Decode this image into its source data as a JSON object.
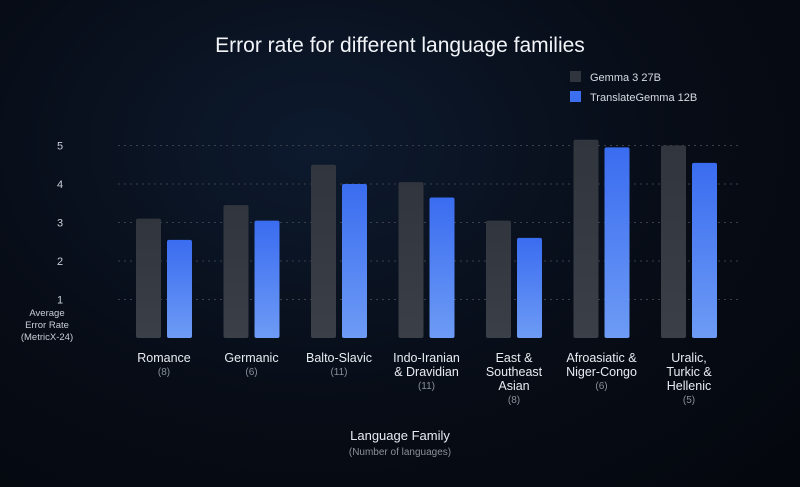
{
  "chart_data": {
    "type": "bar",
    "title": "Error rate for different language families",
    "ylabel": [
      "Average",
      "Error Rate",
      "(MetricX-24)"
    ],
    "xlabel": "Language Family",
    "xlabel_sub": "(Number of languages)",
    "yticks": [
      1,
      2,
      3,
      4,
      5
    ],
    "ylim": [
      0,
      5.5
    ],
    "grid": true,
    "legend_position": "top-right",
    "categories": [
      {
        "label": [
          "Romance"
        ],
        "count": "(8)"
      },
      {
        "label": [
          "Germanic"
        ],
        "count": "(6)"
      },
      {
        "label": [
          "Balto-Slavic"
        ],
        "count": "(11)"
      },
      {
        "label": [
          "Indo-Iranian",
          "& Dravidian"
        ],
        "count": "(11)"
      },
      {
        "label": [
          "East &",
          "Southeast",
          "Asian"
        ],
        "count": "(8)"
      },
      {
        "label": [
          "Afroasiatic &",
          "Niger-Congo"
        ],
        "count": "(6)"
      },
      {
        "label": [
          "Uralic,",
          "Turkic &",
          "Hellenic"
        ],
        "count": "(5)"
      }
    ],
    "series": [
      {
        "name": "Gemma 3 27B",
        "color": "#30343c",
        "values": [
          3.1,
          3.45,
          4.5,
          4.05,
          3.05,
          5.15,
          5.0
        ]
      },
      {
        "name": "TranslateGemma 12B",
        "color": "#3b6ff0",
        "values": [
          2.55,
          3.05,
          4.0,
          3.65,
          2.6,
          4.95,
          4.55
        ]
      }
    ]
  }
}
